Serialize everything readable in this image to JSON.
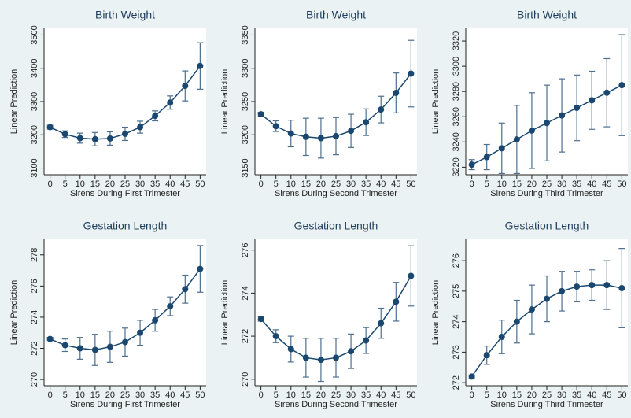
{
  "chart_data": [
    {
      "type": "line",
      "title": "Birth Weight",
      "xlabel": "Sirens During First Trimester",
      "ylabel": "Linear Prediction",
      "color": "#1a476f",
      "error_color": "#4d6f8f",
      "x": [
        0,
        5,
        10,
        15,
        20,
        25,
        30,
        35,
        40,
        45,
        50
      ],
      "values": [
        3223,
        3202,
        3190,
        3187,
        3189,
        3203,
        3223,
        3257,
        3297,
        3347,
        3407
      ],
      "errors": [
        6,
        10,
        15,
        20,
        20,
        20,
        18,
        15,
        20,
        45,
        70
      ],
      "xlim": [
        -2,
        52
      ],
      "xticks": [
        0,
        5,
        10,
        15,
        20,
        25,
        30,
        35,
        40,
        45,
        50
      ],
      "ylim": [
        3080,
        3520
      ],
      "yticks": [
        3100,
        3200,
        3300,
        3400,
        3500
      ]
    },
    {
      "type": "line",
      "title": "Birth Weight",
      "xlabel": "Sirens During Second Trimester",
      "ylabel": "Linear Prediction",
      "color": "#1a476f",
      "error_color": "#4d6f8f",
      "x": [
        0,
        5,
        10,
        15,
        20,
        25,
        30,
        35,
        40,
        45,
        50
      ],
      "values": [
        3231,
        3213,
        3202,
        3197,
        3195,
        3198,
        3206,
        3219,
        3238,
        3263,
        3292
      ],
      "errors": [
        3,
        8,
        20,
        28,
        30,
        28,
        25,
        20,
        20,
        30,
        50
      ],
      "xlim": [
        -2,
        52
      ],
      "xticks": [
        0,
        5,
        10,
        15,
        20,
        25,
        30,
        35,
        40,
        45,
        50
      ],
      "ylim": [
        3140,
        3360
      ],
      "yticks": [
        3150,
        3200,
        3250,
        3300,
        3350
      ]
    },
    {
      "type": "line",
      "title": "Birth Weight",
      "xlabel": "Sirens During Third Trimester",
      "ylabel": "Linear Prediction",
      "color": "#1a476f",
      "error_color": "#4d6f8f",
      "x": [
        0,
        5,
        10,
        15,
        20,
        25,
        30,
        35,
        40,
        45,
        50
      ],
      "values": [
        3222,
        3228,
        3235,
        3242,
        3249,
        3255,
        3261,
        3267,
        3273,
        3279,
        3285
      ],
      "errors": [
        4,
        10,
        20,
        27,
        30,
        30,
        29,
        26,
        23,
        27,
        40
      ],
      "xlim": [
        -2,
        52
      ],
      "xticks": [
        0,
        5,
        10,
        15,
        20,
        25,
        30,
        35,
        40,
        45,
        50
      ],
      "ylim": [
        3214,
        3330
      ],
      "yticks": [
        3220,
        3240,
        3260,
        3280,
        3300,
        3320
      ]
    },
    {
      "type": "line",
      "title": "Gestation Length",
      "xlabel": "Sirens During First Trimester",
      "ylabel": "Linear Prediction",
      "color": "#1a476f",
      "error_color": "#4d6f8f",
      "x": [
        0,
        5,
        10,
        15,
        20,
        25,
        30,
        35,
        40,
        45,
        50
      ],
      "values": [
        272.6,
        272.2,
        272.0,
        271.9,
        272.1,
        272.4,
        273.0,
        273.8,
        274.7,
        275.8,
        277.1
      ],
      "errors": [
        0.1,
        0.4,
        0.7,
        1.0,
        1.0,
        0.9,
        0.8,
        0.7,
        0.6,
        0.9,
        1.5
      ],
      "xlim": [
        -2,
        52
      ],
      "xticks": [
        0,
        5,
        10,
        15,
        20,
        25,
        30,
        35,
        40,
        45,
        50
      ],
      "ylim": [
        269.6,
        279
      ],
      "yticks": [
        270,
        272,
        274,
        276,
        278
      ]
    },
    {
      "type": "line",
      "title": "Gestation Length",
      "xlabel": "Sirens During Second Trimester",
      "ylabel": "Linear Prediction",
      "color": "#1a476f",
      "error_color": "#4d6f8f",
      "x": [
        0,
        5,
        10,
        15,
        20,
        25,
        30,
        35,
        40,
        45,
        50
      ],
      "values": [
        272.8,
        272.0,
        271.4,
        271.0,
        270.9,
        271.0,
        271.3,
        271.8,
        272.6,
        273.6,
        274.8
      ],
      "errors": [
        0.1,
        0.3,
        0.6,
        0.9,
        1.0,
        0.9,
        0.8,
        0.6,
        0.7,
        0.9,
        1.4
      ],
      "xlim": [
        -2,
        52
      ],
      "xticks": [
        0,
        5,
        10,
        15,
        20,
        25,
        30,
        35,
        40,
        45,
        50
      ],
      "ylim": [
        269.7,
        276.5
      ],
      "yticks": [
        270,
        272,
        274,
        276
      ]
    },
    {
      "type": "line",
      "title": "Gestation Length",
      "xlabel": "Sirens During Third Trimester",
      "ylabel": "Linear Prediction",
      "color": "#1a476f",
      "error_color": "#4d6f8f",
      "x": [
        0,
        5,
        10,
        15,
        20,
        25,
        30,
        35,
        40,
        45,
        50
      ],
      "values": [
        272.2,
        272.9,
        273.5,
        274.0,
        274.4,
        274.75,
        275.0,
        275.15,
        275.2,
        275.2,
        275.1
      ],
      "errors": [
        0.05,
        0.3,
        0.55,
        0.7,
        0.8,
        0.75,
        0.65,
        0.5,
        0.5,
        0.8,
        1.3
      ],
      "xlim": [
        -2,
        52
      ],
      "xticks": [
        0,
        5,
        10,
        15,
        20,
        25,
        30,
        35,
        40,
        45,
        50
      ],
      "ylim": [
        271.9,
        276.7
      ],
      "yticks": [
        272,
        273,
        274,
        275,
        276
      ]
    }
  ]
}
